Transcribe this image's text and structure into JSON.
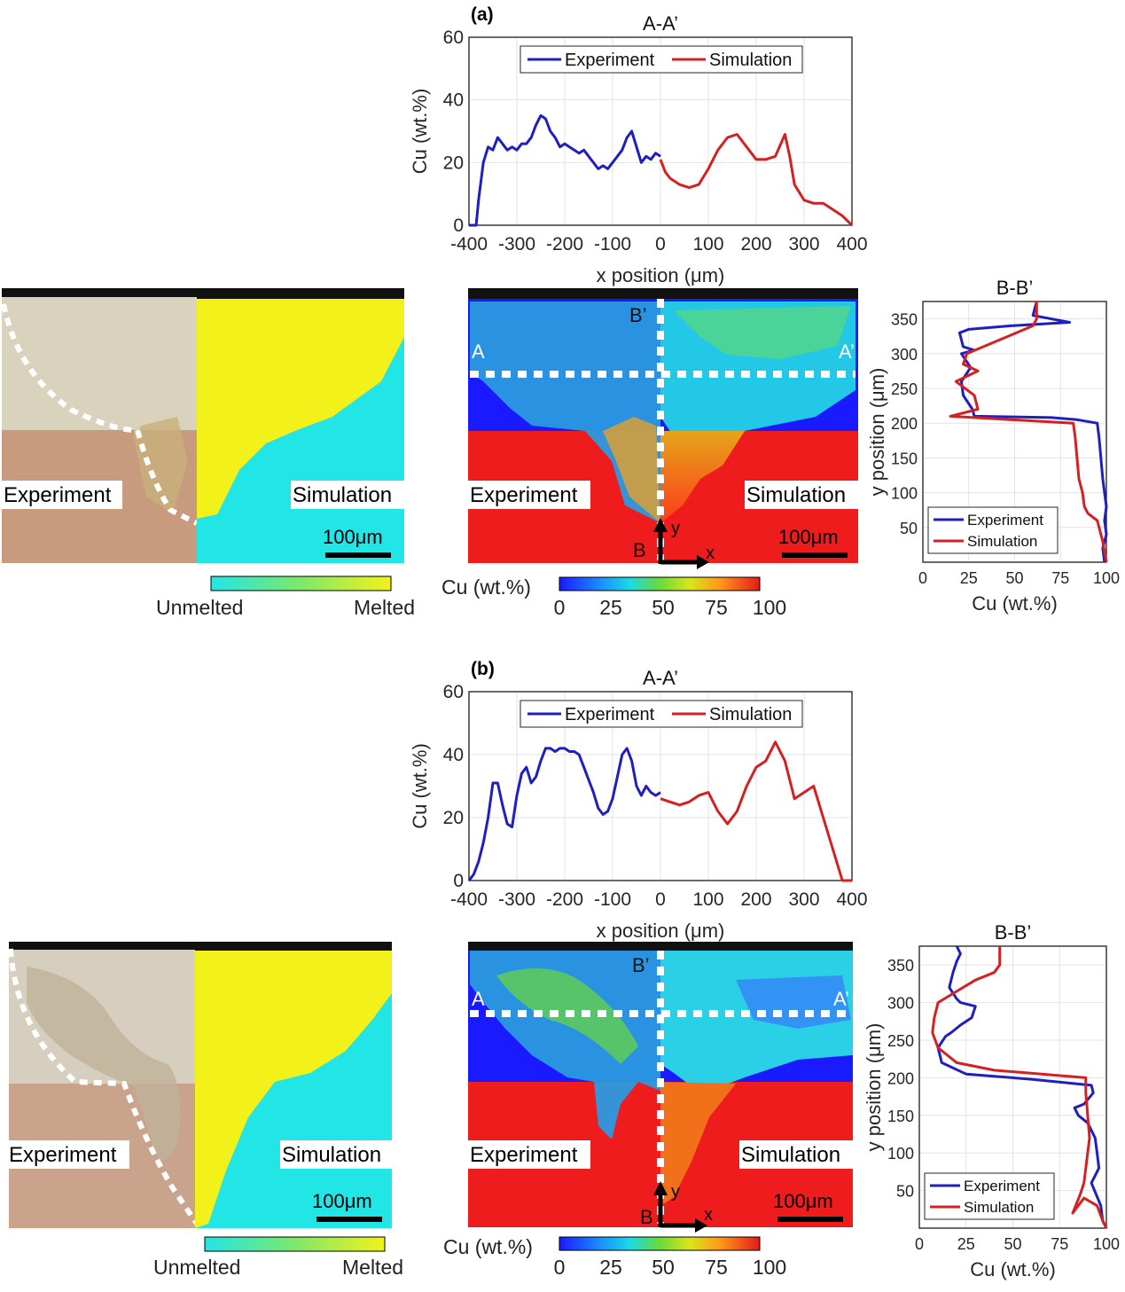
{
  "panels": [
    {
      "label": "(a)",
      "overlay": {
        "left_tag": "Experiment",
        "right_tag": "Simulation",
        "micro_scale": "100μm",
        "map_scale": "100μm",
        "A": "A",
        "A_prime": "A’",
        "B": "B",
        "B_prime": "B’",
        "axis_x": "x",
        "axis_y": "y"
      },
      "melt_colorbar": {
        "min_label": "Unmelted",
        "max_label": "Melted"
      },
      "cu_colorbar": {
        "label": "Cu (wt.%)",
        "ticks": [
          "0",
          "25",
          "50",
          "75",
          "100"
        ]
      }
    },
    {
      "label": "(b)",
      "overlay": {
        "left_tag": "Experiment",
        "right_tag": "Simulation",
        "micro_scale": "100μm",
        "map_scale": "100μm",
        "A": "A",
        "A_prime": "A’",
        "B": "B",
        "B_prime": "B’",
        "axis_x": "x",
        "axis_y": "y"
      },
      "melt_colorbar": {
        "min_label": "Unmelted",
        "max_label": "Melted"
      },
      "cu_colorbar": {
        "label": "Cu (wt.%)",
        "ticks": [
          "0",
          "25",
          "50",
          "75",
          "100"
        ]
      }
    }
  ],
  "colors": {
    "experiment": "#1f1fbf",
    "simulation": "#d42020",
    "melt_low": "#22e5e5",
    "melt_high": "#f2f21a"
  },
  "chart_data": [
    {
      "id": "a-AA",
      "type": "line",
      "title": "A-A’",
      "xlabel": "x position (μm)",
      "ylabel": "Cu (wt.%)",
      "xlim": [
        -400,
        400
      ],
      "ylim": [
        0,
        60
      ],
      "xticks": [
        -400,
        -300,
        -200,
        -100,
        0,
        100,
        200,
        300,
        400
      ],
      "yticks": [
        0,
        20,
        40,
        60
      ],
      "legend": "top-center",
      "grid": true,
      "series": [
        {
          "name": "Experiment",
          "x": [
            -400,
            -385,
            -380,
            -370,
            -360,
            -350,
            -340,
            -330,
            -320,
            -310,
            -300,
            -290,
            -280,
            -270,
            -260,
            -250,
            -240,
            -230,
            -220,
            -210,
            -200,
            -190,
            -180,
            -170,
            -160,
            -150,
            -140,
            -130,
            -120,
            -110,
            -100,
            -90,
            -80,
            -70,
            -60,
            -50,
            -40,
            -30,
            -20,
            -10,
            0
          ],
          "y": [
            0,
            0,
            8,
            20,
            25,
            24,
            28,
            26,
            24,
            25,
            24,
            26,
            26,
            28,
            32,
            35,
            34,
            30,
            28,
            25,
            26,
            25,
            24,
            23,
            24,
            22,
            20,
            18,
            19,
            18,
            20,
            22,
            24,
            28,
            30,
            25,
            20,
            22,
            21,
            23,
            22
          ]
        },
        {
          "name": "Simulation",
          "x": [
            0,
            10,
            20,
            40,
            60,
            80,
            100,
            120,
            140,
            160,
            180,
            200,
            220,
            240,
            260,
            270,
            280,
            300,
            320,
            340,
            360,
            380,
            400
          ],
          "y": [
            21,
            17,
            15,
            13,
            12,
            13,
            18,
            24,
            28,
            29,
            25,
            21,
            21,
            22,
            29,
            22,
            13,
            8,
            7,
            7,
            5,
            3,
            0
          ]
        }
      ]
    },
    {
      "id": "a-BB",
      "type": "line",
      "title": "B-B’",
      "xlabel": "Cu (wt.%)",
      "ylabel": "y position (μm)",
      "xlim": [
        0,
        100
      ],
      "ylim": [
        0,
        375
      ],
      "xticks": [
        0,
        25,
        50,
        75,
        100
      ],
      "yticks": [
        50,
        100,
        150,
        200,
        250,
        300,
        350
      ],
      "legend": "bottom-left",
      "grid": true,
      "series": [
        {
          "name": "Experiment",
          "x": [
            99,
            98,
            100,
            99,
            100,
            99,
            98,
            97,
            96,
            95,
            84,
            70,
            28,
            27,
            22,
            21,
            26,
            21,
            28,
            22,
            20,
            25,
            48,
            80,
            60,
            62
          ],
          "y": [
            0,
            20,
            40,
            60,
            80,
            100,
            120,
            150,
            180,
            200,
            205,
            208,
            210,
            220,
            240,
            260,
            280,
            300,
            305,
            310,
            330,
            335,
            340,
            345,
            355,
            375
          ]
        },
        {
          "name": "Simulation",
          "x": [
            100,
            98,
            95,
            90,
            88,
            87,
            85,
            84,
            83,
            82,
            15,
            30,
            28,
            18,
            30,
            22,
            24,
            60,
            62,
            62
          ],
          "y": [
            0,
            30,
            60,
            70,
            80,
            100,
            120,
            150,
            180,
            200,
            210,
            220,
            240,
            260,
            275,
            285,
            300,
            340,
            350,
            375
          ]
        }
      ]
    },
    {
      "id": "b-AA",
      "type": "line",
      "title": "A-A’",
      "xlabel": "x position (μm)",
      "ylabel": "Cu (wt.%)",
      "xlim": [
        -400,
        400
      ],
      "ylim": [
        0,
        60
      ],
      "xticks": [
        -400,
        -300,
        -200,
        -100,
        0,
        100,
        200,
        300,
        400
      ],
      "yticks": [
        0,
        20,
        40,
        60
      ],
      "legend": "top-center",
      "grid": true,
      "series": [
        {
          "name": "Experiment",
          "x": [
            -400,
            -390,
            -380,
            -370,
            -360,
            -350,
            -340,
            -330,
            -320,
            -310,
            -300,
            -290,
            -280,
            -270,
            -260,
            -250,
            -240,
            -230,
            -220,
            -210,
            -200,
            -190,
            -180,
            -170,
            -160,
            -150,
            -140,
            -130,
            -120,
            -110,
            -100,
            -90,
            -80,
            -70,
            -60,
            -50,
            -40,
            -30,
            -20,
            -10,
            0
          ],
          "y": [
            0,
            2,
            6,
            12,
            20,
            31,
            31,
            24,
            18,
            17,
            27,
            34,
            36,
            31,
            33,
            38,
            42,
            42,
            41,
            42,
            42,
            41,
            41,
            40,
            36,
            32,
            28,
            23,
            21,
            22,
            26,
            33,
            40,
            42,
            38,
            30,
            27,
            30,
            28,
            27,
            28
          ]
        },
        {
          "name": "Simulation",
          "x": [
            0,
            20,
            40,
            60,
            80,
            100,
            120,
            140,
            160,
            180,
            200,
            220,
            240,
            260,
            280,
            300,
            320,
            340,
            360,
            380,
            400
          ],
          "y": [
            26,
            25,
            24,
            25,
            27,
            28,
            22,
            18,
            22,
            30,
            36,
            38,
            44,
            38,
            26,
            28,
            30,
            20,
            10,
            0,
            0
          ]
        }
      ]
    },
    {
      "id": "b-BB",
      "type": "line",
      "title": "B-B’",
      "xlabel": "Cu (wt.%)",
      "ylabel": "y position (μm)",
      "xlim": [
        0,
        100
      ],
      "ylim": [
        0,
        375
      ],
      "xticks": [
        0,
        25,
        50,
        75,
        100
      ],
      "yticks": [
        50,
        100,
        150,
        200,
        250,
        300,
        350
      ],
      "legend": "bottom-left",
      "grid": true,
      "series": [
        {
          "name": "Experiment",
          "x": [
            100,
            98,
            97,
            92,
            96,
            95,
            94,
            92,
            90,
            85,
            83,
            88,
            93,
            92,
            60,
            25,
            12,
            10,
            14,
            17,
            22,
            28,
            30,
            22,
            20,
            16,
            18,
            20,
            22,
            20
          ],
          "y": [
            0,
            10,
            30,
            60,
            80,
            100,
            120,
            130,
            140,
            150,
            160,
            165,
            180,
            190,
            198,
            205,
            220,
            240,
            255,
            260,
            270,
            280,
            295,
            300,
            305,
            320,
            340,
            355,
            365,
            375
          ]
        },
        {
          "name": "Simulation",
          "x": [
            100,
            98,
            95,
            88,
            82,
            86,
            88,
            89,
            90,
            91,
            90,
            89,
            89,
            40,
            20,
            10,
            7,
            8,
            10,
            20,
            30,
            40,
            43,
            43
          ],
          "y": [
            0,
            10,
            30,
            40,
            20,
            45,
            60,
            80,
            100,
            120,
            150,
            180,
            200,
            210,
            220,
            240,
            260,
            280,
            300,
            315,
            330,
            340,
            350,
            375
          ]
        }
      ]
    }
  ]
}
